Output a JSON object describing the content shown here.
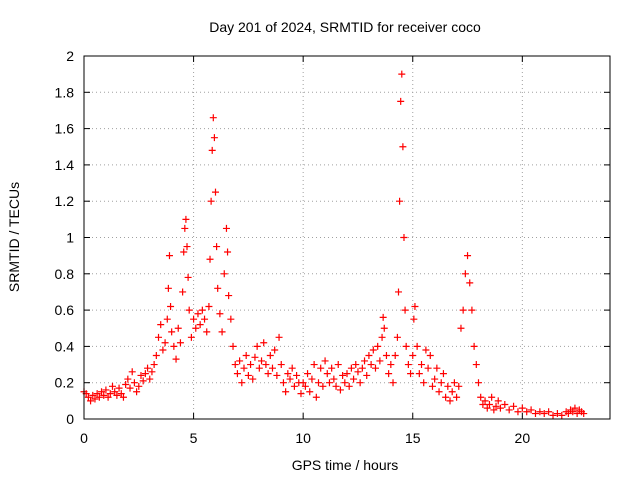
{
  "chart_data": {
    "type": "scatter",
    "title": "Day 201 of 2024, SRMTID for receiver coco",
    "xlabel": "GPS time / hours",
    "ylabel": "SRMTID / TECUs",
    "xlim": [
      0,
      24
    ],
    "ylim": [
      0,
      2
    ],
    "x_ticks": [
      "0",
      "5",
      "10",
      "15",
      "20"
    ],
    "x_tick_values": [
      0,
      5,
      10,
      15,
      20
    ],
    "y_ticks": [
      "0",
      "0.2",
      "0.4",
      "0.6",
      "0.8",
      "1",
      "1.2",
      "1.4",
      "1.6",
      "1.8",
      "2"
    ],
    "y_tick_values": [
      0,
      0.2,
      0.4,
      0.6,
      0.8,
      1.0,
      1.2,
      1.4,
      1.6,
      1.8,
      2.0
    ],
    "grid": true,
    "marker": "+",
    "color": "#ff0000",
    "series": [
      {
        "name": "SRMTID",
        "points": [
          [
            0.0,
            0.15
          ],
          [
            0.1,
            0.14
          ],
          [
            0.2,
            0.12
          ],
          [
            0.3,
            0.1
          ],
          [
            0.4,
            0.13
          ],
          [
            0.5,
            0.11
          ],
          [
            0.6,
            0.14
          ],
          [
            0.7,
            0.12
          ],
          [
            0.8,
            0.15
          ],
          [
            0.9,
            0.13
          ],
          [
            1.0,
            0.16
          ],
          [
            1.1,
            0.12
          ],
          [
            1.2,
            0.14
          ],
          [
            1.3,
            0.18
          ],
          [
            1.4,
            0.15
          ],
          [
            1.5,
            0.13
          ],
          [
            1.6,
            0.17
          ],
          [
            1.7,
            0.14
          ],
          [
            1.8,
            0.12
          ],
          [
            1.9,
            0.19
          ],
          [
            2.0,
            0.22
          ],
          [
            2.1,
            0.17
          ],
          [
            2.2,
            0.26
          ],
          [
            2.3,
            0.2
          ],
          [
            2.4,
            0.15
          ],
          [
            2.5,
            0.18
          ],
          [
            2.6,
            0.24
          ],
          [
            2.7,
            0.21
          ],
          [
            2.8,
            0.25
          ],
          [
            2.9,
            0.28
          ],
          [
            3.0,
            0.22
          ],
          [
            3.1,
            0.26
          ],
          [
            3.2,
            0.3
          ],
          [
            3.3,
            0.35
          ],
          [
            3.4,
            0.45
          ],
          [
            3.5,
            0.52
          ],
          [
            3.6,
            0.38
          ],
          [
            3.7,
            0.42
          ],
          [
            3.8,
            0.55
          ],
          [
            3.85,
            0.72
          ],
          [
            3.9,
            0.9
          ],
          [
            3.95,
            0.62
          ],
          [
            4.0,
            0.48
          ],
          [
            4.1,
            0.4
          ],
          [
            4.2,
            0.33
          ],
          [
            4.3,
            0.5
          ],
          [
            4.4,
            0.42
          ],
          [
            4.5,
            0.7
          ],
          [
            4.55,
            0.92
          ],
          [
            4.6,
            1.05
          ],
          [
            4.65,
            1.1
          ],
          [
            4.7,
            0.95
          ],
          [
            4.75,
            0.78
          ],
          [
            4.8,
            0.6
          ],
          [
            4.9,
            0.45
          ],
          [
            5.0,
            0.55
          ],
          [
            5.1,
            0.5
          ],
          [
            5.2,
            0.58
          ],
          [
            5.3,
            0.52
          ],
          [
            5.4,
            0.6
          ],
          [
            5.5,
            0.55
          ],
          [
            5.6,
            0.48
          ],
          [
            5.7,
            0.62
          ],
          [
            5.75,
            0.88
          ],
          [
            5.8,
            1.2
          ],
          [
            5.85,
            1.48
          ],
          [
            5.9,
            1.66
          ],
          [
            5.95,
            1.55
          ],
          [
            6.0,
            1.25
          ],
          [
            6.05,
            0.95
          ],
          [
            6.1,
            0.72
          ],
          [
            6.2,
            0.58
          ],
          [
            6.3,
            0.48
          ],
          [
            6.4,
            0.8
          ],
          [
            6.5,
            1.05
          ],
          [
            6.55,
            0.92
          ],
          [
            6.6,
            0.68
          ],
          [
            6.7,
            0.55
          ],
          [
            6.8,
            0.4
          ],
          [
            6.9,
            0.3
          ],
          [
            7.0,
            0.25
          ],
          [
            7.1,
            0.32
          ],
          [
            7.2,
            0.2
          ],
          [
            7.3,
            0.28
          ],
          [
            7.4,
            0.35
          ],
          [
            7.5,
            0.24
          ],
          [
            7.6,
            0.3
          ],
          [
            7.7,
            0.22
          ],
          [
            7.8,
            0.34
          ],
          [
            7.9,
            0.4
          ],
          [
            8.0,
            0.28
          ],
          [
            8.1,
            0.32
          ],
          [
            8.2,
            0.42
          ],
          [
            8.3,
            0.3
          ],
          [
            8.4,
            0.25
          ],
          [
            8.5,
            0.35
          ],
          [
            8.6,
            0.28
          ],
          [
            8.7,
            0.38
          ],
          [
            8.8,
            0.24
          ],
          [
            8.9,
            0.45
          ],
          [
            9.0,
            0.3
          ],
          [
            9.1,
            0.2
          ],
          [
            9.2,
            0.15
          ],
          [
            9.3,
            0.25
          ],
          [
            9.4,
            0.22
          ],
          [
            9.5,
            0.28
          ],
          [
            9.6,
            0.18
          ],
          [
            9.7,
            0.24
          ],
          [
            9.8,
            0.2
          ],
          [
            9.9,
            0.14
          ],
          [
            10.0,
            0.2
          ],
          [
            10.1,
            0.18
          ],
          [
            10.2,
            0.25
          ],
          [
            10.3,
            0.15
          ],
          [
            10.4,
            0.22
          ],
          [
            10.5,
            0.3
          ],
          [
            10.6,
            0.12
          ],
          [
            10.7,
            0.2
          ],
          [
            10.8,
            0.28
          ],
          [
            10.9,
            0.18
          ],
          [
            11.0,
            0.32
          ],
          [
            11.1,
            0.25
          ],
          [
            11.2,
            0.2
          ],
          [
            11.3,
            0.28
          ],
          [
            11.4,
            0.22
          ],
          [
            11.5,
            0.18
          ],
          [
            11.6,
            0.3
          ],
          [
            11.7,
            0.16
          ],
          [
            11.8,
            0.24
          ],
          [
            11.9,
            0.2
          ],
          [
            12.0,
            0.25
          ],
          [
            12.1,
            0.18
          ],
          [
            12.2,
            0.28
          ],
          [
            12.3,
            0.22
          ],
          [
            12.4,
            0.3
          ],
          [
            12.5,
            0.26
          ],
          [
            12.6,
            0.2
          ],
          [
            12.7,
            0.28
          ],
          [
            12.8,
            0.32
          ],
          [
            12.9,
            0.24
          ],
          [
            13.0,
            0.35
          ],
          [
            13.1,
            0.3
          ],
          [
            13.2,
            0.38
          ],
          [
            13.3,
            0.28
          ],
          [
            13.4,
            0.4
          ],
          [
            13.5,
            0.32
          ],
          [
            13.6,
            0.45
          ],
          [
            13.65,
            0.56
          ],
          [
            13.7,
            0.5
          ],
          [
            13.8,
            0.35
          ],
          [
            13.9,
            0.25
          ],
          [
            14.0,
            0.3
          ],
          [
            14.1,
            0.2
          ],
          [
            14.2,
            0.35
          ],
          [
            14.3,
            0.45
          ],
          [
            14.35,
            0.7
          ],
          [
            14.4,
            1.2
          ],
          [
            14.45,
            1.75
          ],
          [
            14.5,
            1.9
          ],
          [
            14.55,
            1.5
          ],
          [
            14.6,
            1.0
          ],
          [
            14.65,
            0.6
          ],
          [
            14.7,
            0.4
          ],
          [
            14.8,
            0.3
          ],
          [
            14.9,
            0.25
          ],
          [
            15.0,
            0.35
          ],
          [
            15.05,
            0.55
          ],
          [
            15.1,
            0.62
          ],
          [
            15.2,
            0.4
          ],
          [
            15.3,
            0.25
          ],
          [
            15.4,
            0.3
          ],
          [
            15.5,
            0.2
          ],
          [
            15.6,
            0.38
          ],
          [
            15.7,
            0.28
          ],
          [
            15.8,
            0.35
          ],
          [
            15.9,
            0.18
          ],
          [
            16.0,
            0.22
          ],
          [
            16.1,
            0.28
          ],
          [
            16.2,
            0.15
          ],
          [
            16.3,
            0.2
          ],
          [
            16.4,
            0.25
          ],
          [
            16.5,
            0.12
          ],
          [
            16.6,
            0.18
          ],
          [
            16.7,
            0.1
          ],
          [
            16.8,
            0.15
          ],
          [
            16.9,
            0.2
          ],
          [
            17.0,
            0.12
          ],
          [
            17.1,
            0.18
          ],
          [
            17.2,
            0.5
          ],
          [
            17.3,
            0.6
          ],
          [
            17.4,
            0.8
          ],
          [
            17.5,
            0.9
          ],
          [
            17.6,
            0.75
          ],
          [
            17.7,
            0.6
          ],
          [
            17.8,
            0.4
          ],
          [
            17.9,
            0.3
          ],
          [
            18.0,
            0.2
          ],
          [
            18.1,
            0.12
          ],
          [
            18.2,
            0.08
          ],
          [
            18.3,
            0.1
          ],
          [
            18.4,
            0.06
          ],
          [
            18.5,
            0.08
          ],
          [
            18.6,
            0.12
          ],
          [
            18.7,
            0.05
          ],
          [
            18.8,
            0.07
          ],
          [
            18.9,
            0.1
          ],
          [
            19.0,
            0.06
          ],
          [
            19.2,
            0.08
          ],
          [
            19.4,
            0.05
          ],
          [
            19.6,
            0.07
          ],
          [
            19.8,
            0.04
          ],
          [
            20.0,
            0.06
          ],
          [
            20.2,
            0.04
          ],
          [
            20.4,
            0.05
          ],
          [
            20.6,
            0.03
          ],
          [
            20.8,
            0.04
          ],
          [
            21.0,
            0.03
          ],
          [
            21.2,
            0.04
          ],
          [
            21.4,
            0.02
          ],
          [
            21.6,
            0.03
          ],
          [
            21.8,
            0.02
          ],
          [
            22.0,
            0.04
          ],
          [
            22.1,
            0.03
          ],
          [
            22.2,
            0.05
          ],
          [
            22.3,
            0.04
          ],
          [
            22.4,
            0.06
          ],
          [
            22.5,
            0.03
          ],
          [
            22.6,
            0.05
          ],
          [
            22.7,
            0.04
          ],
          [
            22.8,
            0.03
          ]
        ]
      }
    ]
  }
}
